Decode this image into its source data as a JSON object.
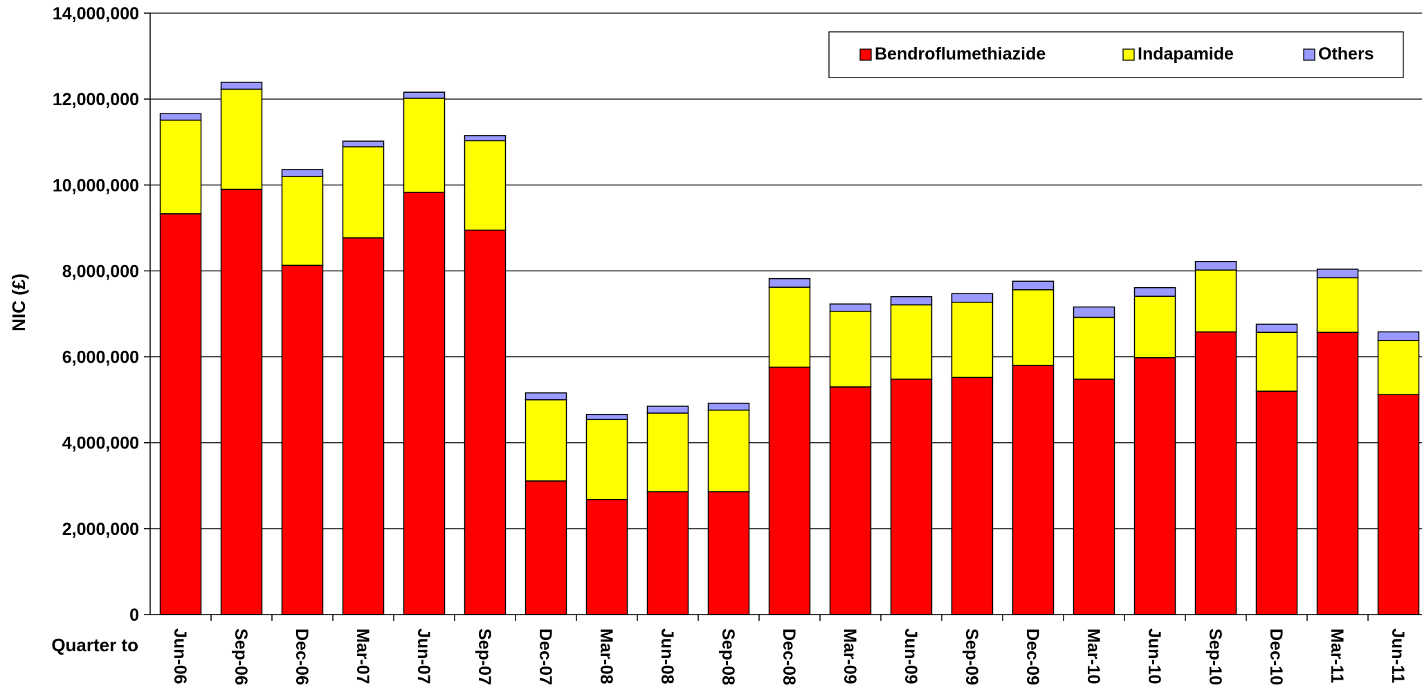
{
  "chart_data": {
    "type": "bar",
    "stacked": true,
    "ylabel": "NIC (£)",
    "xlabel": "Quarter to",
    "ylim": [
      0,
      14000000
    ],
    "yticks": [
      "0",
      "2,000,000",
      "4,000,000",
      "6,000,000",
      "8,000,000",
      "10,000,000",
      "12,000,000",
      "14,000,000"
    ],
    "ytick_values": [
      0,
      2000000,
      4000000,
      6000000,
      8000000,
      10000000,
      12000000,
      14000000
    ],
    "grid": true,
    "legend_position": "top-right",
    "categories": [
      "Jun-06",
      "Sep-06",
      "Dec-06",
      "Mar-07",
      "Jun-07",
      "Sep-07",
      "Dec-07",
      "Mar-08",
      "Jun-08",
      "Sep-08",
      "Dec-08",
      "Mar-09",
      "Jun-09",
      "Sep-09",
      "Dec-09",
      "Mar-10",
      "Jun-10",
      "Sep-10",
      "Dec-10",
      "Mar-11",
      "Jun-11"
    ],
    "series": [
      {
        "name": "Bendroflumethiazide",
        "color": "#ff0000",
        "values": [
          9330000,
          9900000,
          8130000,
          8770000,
          9830000,
          8950000,
          3110000,
          2680000,
          2860000,
          2860000,
          5760000,
          5300000,
          5480000,
          5520000,
          5800000,
          5480000,
          5980000,
          6580000,
          5200000,
          6570000,
          5120000
        ]
      },
      {
        "name": "Indapamide",
        "color": "#ffff00",
        "values": [
          2180000,
          2330000,
          2070000,
          2120000,
          2190000,
          2080000,
          1890000,
          1860000,
          1830000,
          1900000,
          1860000,
          1760000,
          1730000,
          1750000,
          1760000,
          1440000,
          1430000,
          1440000,
          1370000,
          1270000,
          1260000
        ]
      },
      {
        "name": "Others",
        "color": "#9999ff",
        "values": [
          150000,
          160000,
          160000,
          130000,
          140000,
          120000,
          160000,
          120000,
          160000,
          160000,
          200000,
          170000,
          190000,
          200000,
          200000,
          240000,
          200000,
          200000,
          190000,
          200000,
          200000
        ]
      }
    ]
  }
}
